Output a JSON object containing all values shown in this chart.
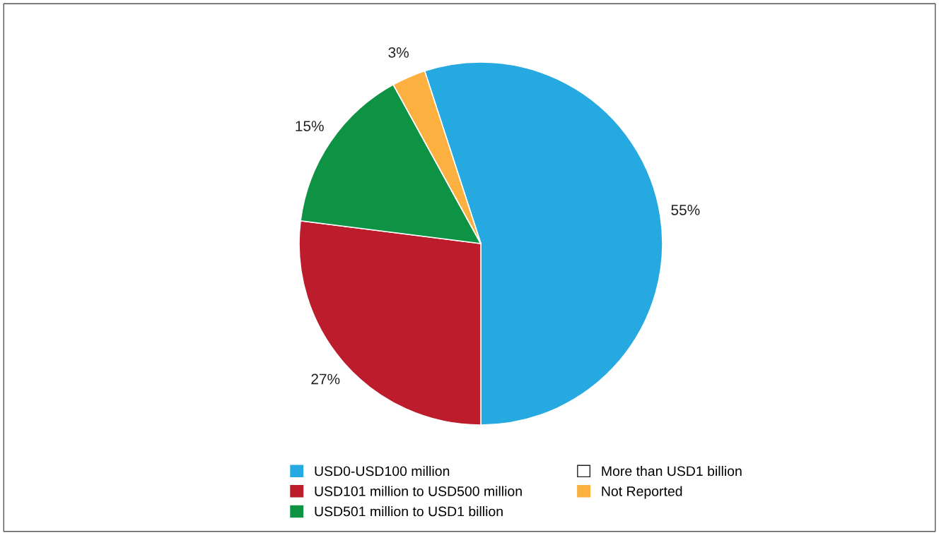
{
  "chart_data": {
    "type": "pie",
    "categories": [
      "USD0-USD100 million",
      "USD101 million to USD500 million",
      "USD501 million to USD1 billion",
      "More than USD1 billion",
      "Not Reported"
    ],
    "values": [
      55,
      27,
      15,
      0,
      3
    ],
    "colors": [
      "#25a9e0",
      "#bc1c2b",
      "#0e9345",
      "#ffffff",
      "#fbb040"
    ],
    "value_labels": [
      "55%",
      "27%",
      "15%",
      null,
      "3%"
    ],
    "legend": "bottom"
  }
}
